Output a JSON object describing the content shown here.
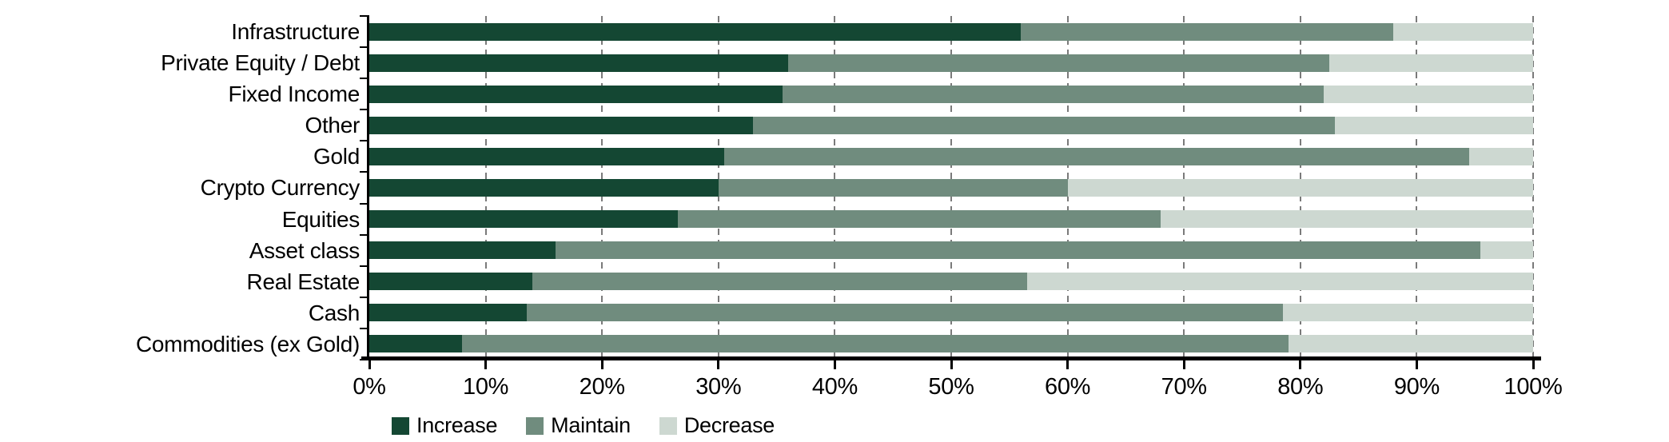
{
  "chart_data": {
    "type": "bar",
    "orientation": "horizontal",
    "stacked": true,
    "title": "",
    "categories": [
      "Infrastructure",
      "Private Equity / Debt",
      "Fixed Income",
      "Other",
      "Gold",
      "Crypto Currency",
      "Equities",
      "Asset class",
      "Real Estate",
      "Cash",
      "Commodities (ex Gold)"
    ],
    "series": [
      {
        "name": "Increase",
        "color": "#144733",
        "values": [
          56,
          36,
          35.5,
          33,
          30.5,
          30,
          26.5,
          16,
          14,
          13.5,
          8
        ]
      },
      {
        "name": "Maintain",
        "color": "#708C7E",
        "values": [
          32,
          46.5,
          46.5,
          50,
          64,
          30,
          41.5,
          79.5,
          42.5,
          65,
          71
        ]
      },
      {
        "name": "Decrease",
        "color": "#CDD8D1",
        "values": [
          12,
          17.5,
          18,
          17,
          5.5,
          40,
          32,
          4.5,
          43.5,
          21.5,
          21
        ]
      }
    ],
    "xlim": [
      0,
      100
    ],
    "x_tick_labels": [
      "0%",
      "10%",
      "20%",
      "30%",
      "40%",
      "50%",
      "60%",
      "70%",
      "80%",
      "90%",
      "100%"
    ],
    "grid": "vertical-dashed",
    "legend_position": "bottom-left",
    "legend_labels": [
      "Increase",
      "Maintain",
      "Decrease"
    ]
  },
  "colors": {
    "background": "#FFFFFF",
    "axis": "#000000",
    "gridline": "#7A7A7A",
    "text": "#000000"
  }
}
